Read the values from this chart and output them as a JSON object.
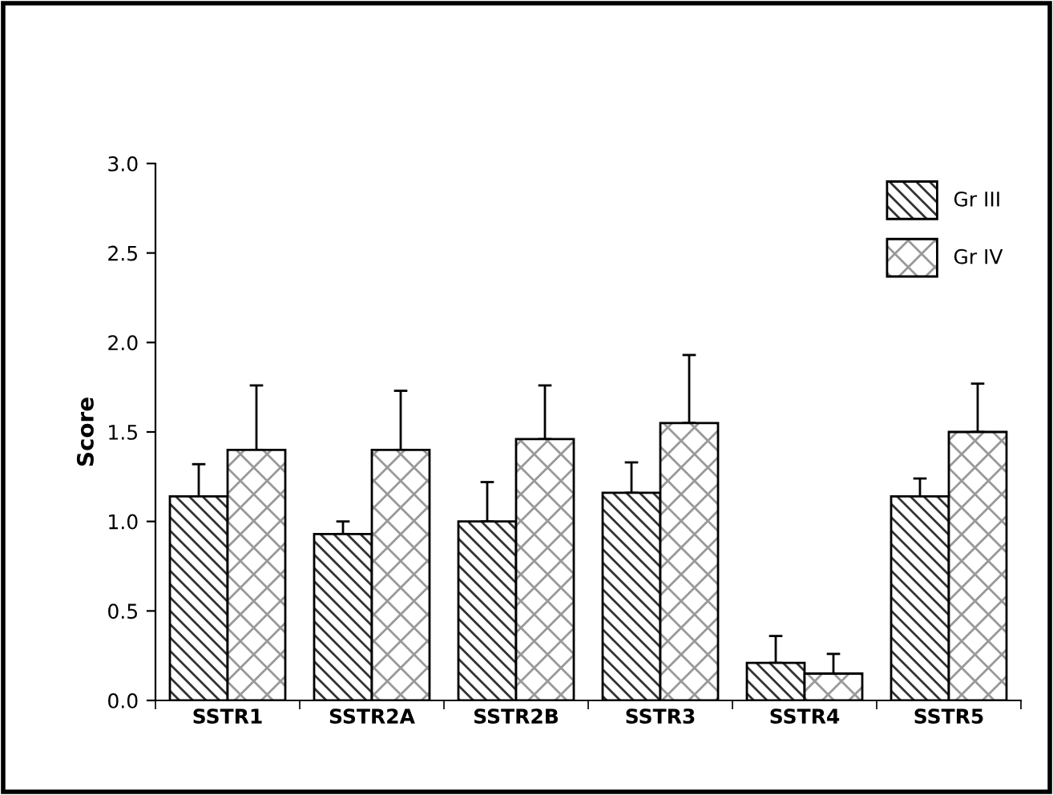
{
  "chart_data": {
    "type": "bar",
    "ylabel": "Score",
    "categories": [
      "SSTR1",
      "SSTR2A",
      "SSTR2B",
      "SSTR3",
      "SSTR4",
      "SSTR5"
    ],
    "series": [
      {
        "name": "Gr III",
        "color": "#000000",
        "values": [
          1.14,
          0.93,
          1.0,
          1.16,
          0.21,
          1.14
        ],
        "errors": [
          [
            1.14,
            1.32
          ],
          [
            0.93,
            1.0
          ],
          [
            1.0,
            1.22
          ],
          [
            1.16,
            1.33
          ],
          [
            0.21,
            0.36
          ],
          [
            1.14,
            1.24
          ]
        ]
      },
      {
        "name": "Gr IV",
        "color": "#000000",
        "values": [
          1.4,
          1.4,
          1.46,
          1.55,
          0.15,
          1.5
        ],
        "errors": [
          [
            1.4,
            1.76
          ],
          [
            1.4,
            1.73
          ],
          [
            1.46,
            1.76
          ],
          [
            1.55,
            1.93
          ],
          [
            0.15,
            0.26
          ],
          [
            1.5,
            1.77
          ]
        ]
      }
    ],
    "ylim": [
      0,
      3.0
    ],
    "yticks": [
      {
        "value": 0,
        "label": "0.0"
      },
      {
        "value": 0.5,
        "label": "0.5"
      },
      {
        "value": 1.0,
        "label": "1.0"
      },
      {
        "value": 1.5,
        "label": "1.5"
      },
      {
        "value": 2.0,
        "label": "2.0"
      },
      {
        "value": 2.5,
        "label": "2.5"
      },
      {
        "value": 3.0,
        "label": "3.0"
      }
    ],
    "grid": false,
    "legend": "top right"
  }
}
